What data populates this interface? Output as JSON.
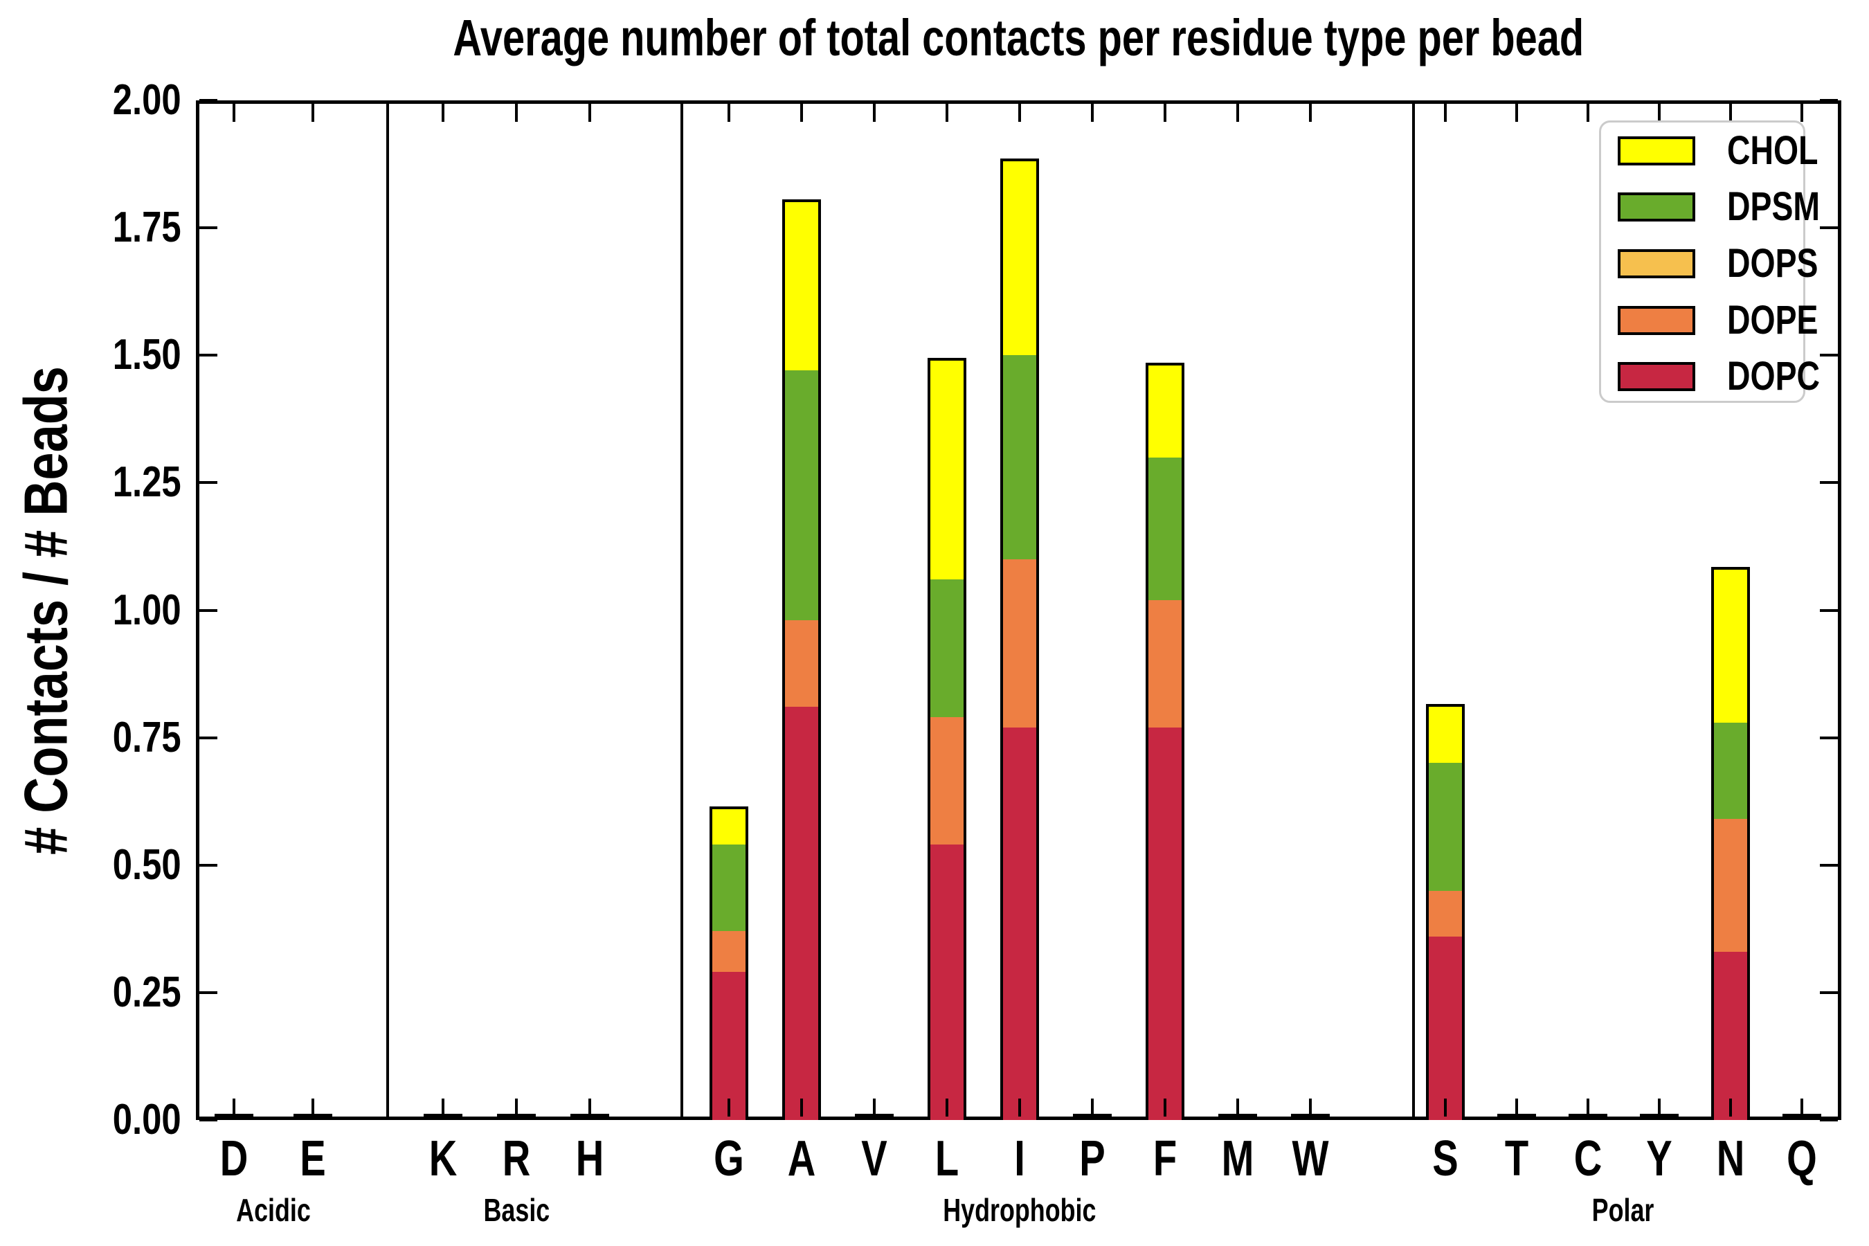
{
  "title": "Average number of total contacts per residue type per bead",
  "chart_data": {
    "type": "bar",
    "stacked": true,
    "title": "Average number of total contacts per residue type per bead",
    "ylabel": "# Contacts / # Beads",
    "xlabel": "",
    "ylim": [
      0,
      2
    ],
    "ytick_step": 0.25,
    "ytick_labels": [
      "0.00",
      "0.25",
      "0.50",
      "0.75",
      "1.00",
      "1.25",
      "1.50",
      "1.75",
      "2.00"
    ],
    "grid": false,
    "legend_position": "upper right",
    "categories": [
      "D",
      "E",
      "K",
      "R",
      "H",
      "G",
      "A",
      "V",
      "L",
      "I",
      "P",
      "F",
      "M",
      "W",
      "S",
      "T",
      "C",
      "Y",
      "N",
      "Q"
    ],
    "groups": [
      {
        "label": "Acidic",
        "categories": [
          "D",
          "E"
        ]
      },
      {
        "label": "Basic",
        "categories": [
          "K",
          "R",
          "H"
        ]
      },
      {
        "label": "Hydrophobic",
        "categories": [
          "G",
          "A",
          "V",
          "L",
          "I",
          "P",
          "F",
          "M",
          "W"
        ]
      },
      {
        "label": "Polar",
        "categories": [
          "S",
          "T",
          "C",
          "Y",
          "N",
          "Q"
        ]
      }
    ],
    "legend_entries": [
      {
        "name": "CHOL",
        "color": "#FFFF00"
      },
      {
        "name": "DPSM",
        "color": "#69AC2C"
      },
      {
        "name": "DOPS",
        "color": "#F6C04E"
      },
      {
        "name": "DOPE",
        "color": "#EE7F43"
      },
      {
        "name": "DOPC",
        "color": "#C72742"
      }
    ],
    "series_bottom_to_top": [
      {
        "name": "DOPC",
        "color": "#C72742",
        "values": [
          0,
          0,
          0,
          0,
          0,
          0.29,
          0.81,
          0,
          0.54,
          0.77,
          0,
          0.77,
          0,
          0,
          0.36,
          0,
          0,
          0,
          0.33,
          0
        ]
      },
      {
        "name": "DOPE",
        "color": "#EE7F43",
        "values": [
          0,
          0,
          0,
          0,
          0,
          0.08,
          0.17,
          0,
          0.25,
          0.33,
          0,
          0.25,
          0,
          0,
          0.09,
          0,
          0,
          0,
          0.26,
          0
        ]
      },
      {
        "name": "DOPS",
        "color": "#F6C04E",
        "values": [
          0,
          0,
          0,
          0,
          0,
          0,
          0,
          0,
          0,
          0,
          0,
          0,
          0,
          0,
          0,
          0,
          0,
          0,
          0,
          0
        ]
      },
      {
        "name": "DPSM",
        "color": "#69AC2C",
        "values": [
          0,
          0,
          0,
          0,
          0,
          0.17,
          0.49,
          0,
          0.27,
          0.4,
          0,
          0.28,
          0,
          0,
          0.25,
          0,
          0,
          0,
          0.19,
          0
        ]
      },
      {
        "name": "CHOL",
        "color": "#FFFF00",
        "values": [
          0,
          0,
          0,
          0,
          0,
          0.07,
          0.33,
          0,
          0.43,
          0.38,
          0,
          0.18,
          0,
          0,
          0.11,
          0,
          0,
          0,
          0.3,
          0
        ]
      }
    ],
    "bar_totals": {
      "G": 0.61,
      "A": 1.8,
      "L": 1.49,
      "I": 1.88,
      "F": 1.48,
      "S": 0.81,
      "N": 1.08
    },
    "colors": {
      "axis": "#000000",
      "background": "#ffffff",
      "bar_edge": "#000000"
    }
  }
}
